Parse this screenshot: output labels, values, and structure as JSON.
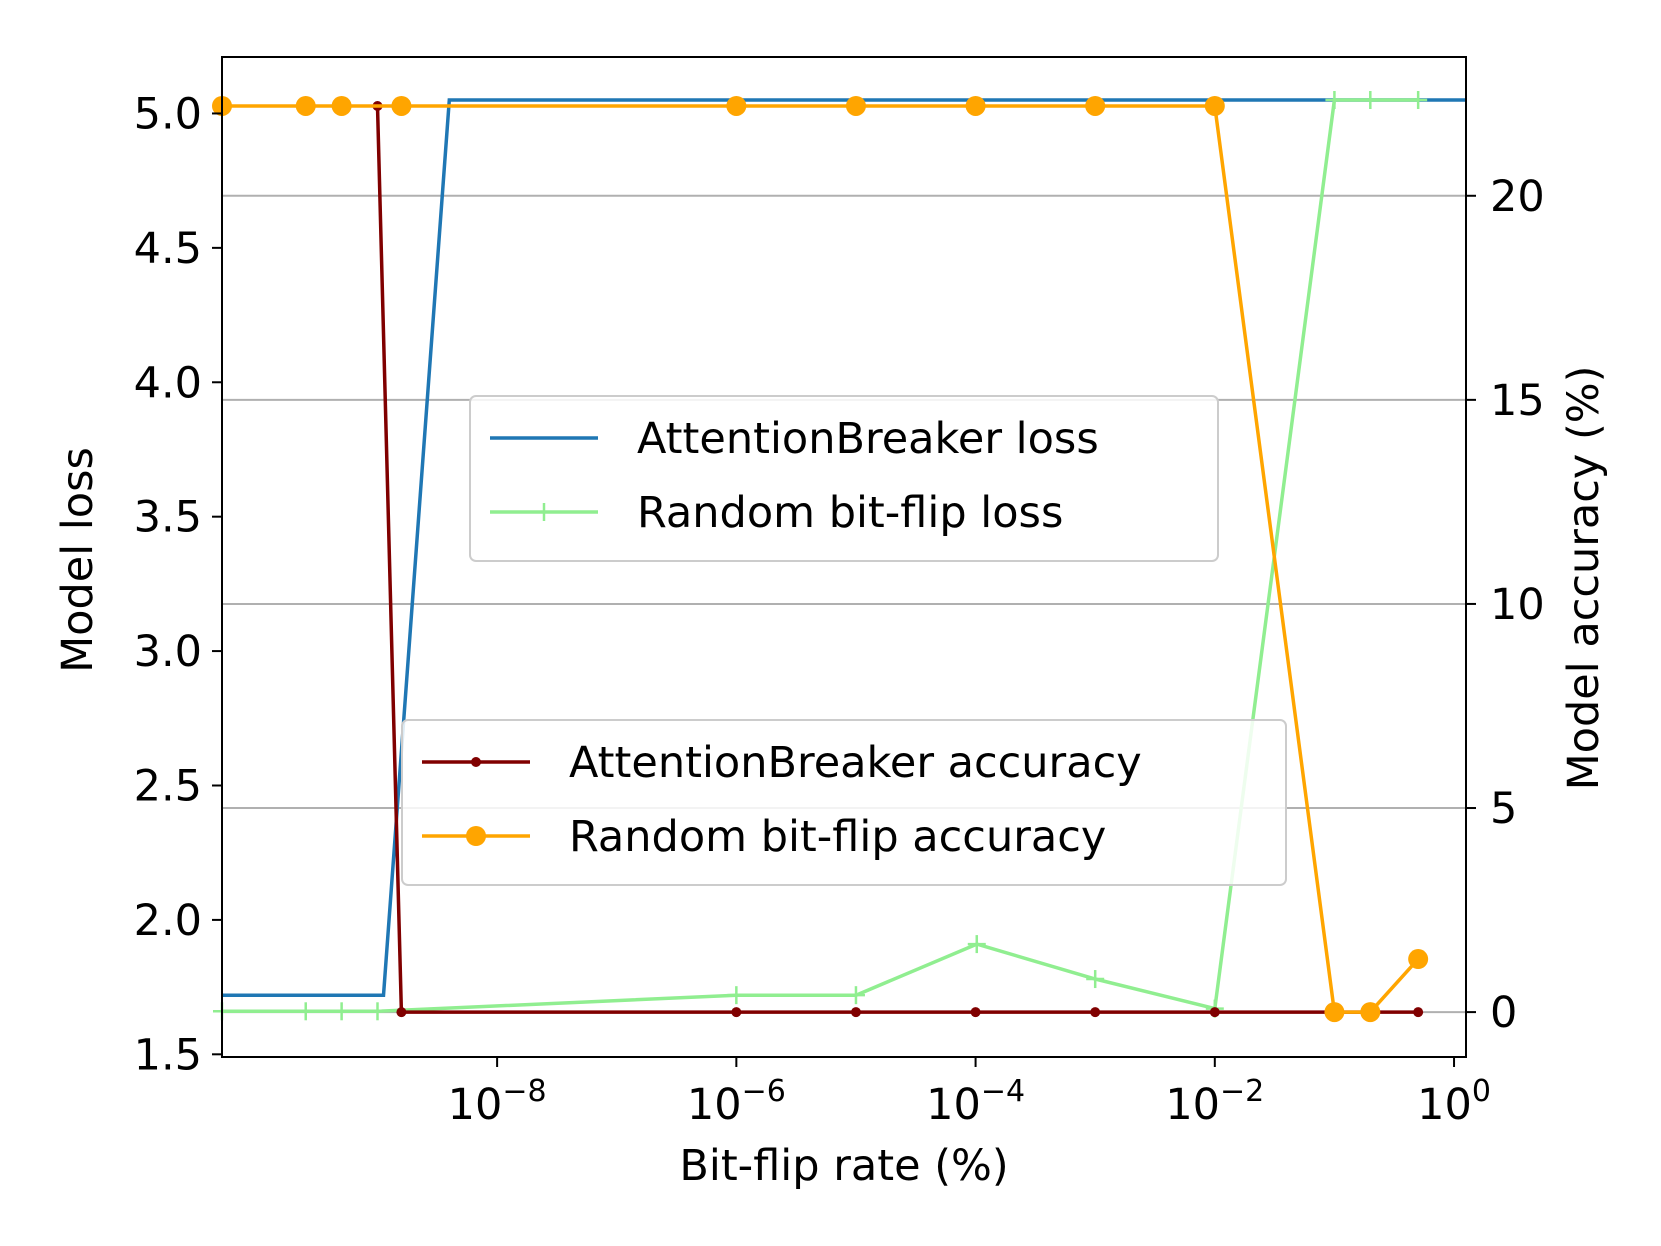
{
  "chart_data": {
    "type": "line",
    "title": "",
    "xlabel": "Bit-flip rate (%)",
    "ylabel_left": "Model loss",
    "ylabel_right": "Model accuracy (%)",
    "x_scale": "log",
    "x_exponent_range": [
      -10.3,
      0.1
    ],
    "xticks": [
      {
        "base": "10",
        "exp": "−8",
        "value": -8
      },
      {
        "base": "10",
        "exp": "−6",
        "value": -6
      },
      {
        "base": "10",
        "exp": "−4",
        "value": -4
      },
      {
        "base": "10",
        "exp": "−2",
        "value": -2
      },
      {
        "base": "10",
        "exp": "0",
        "value": 0
      }
    ],
    "ylim_left": [
      1.49,
      5.21
    ],
    "yticks_left": [
      "1.5",
      "2.0",
      "2.5",
      "3.0",
      "3.5",
      "4.0",
      "4.5",
      "5.0"
    ],
    "ylim_right": [
      -1.1,
      23.4
    ],
    "yticks_right": [
      "0",
      "5",
      "10",
      "15",
      "20"
    ],
    "grid": "horizontal lines at right-axis ticks",
    "series": [
      {
        "name": "AttentionBreaker loss",
        "axis": "left",
        "color": "#1f77b4",
        "marker": "none",
        "points": [
          [
            -10.3,
            1.72
          ],
          [
            -9.0,
            1.72
          ],
          [
            -8.95,
            1.72
          ],
          [
            -8.4,
            5.05
          ],
          [
            0.1,
            5.05
          ]
        ]
      },
      {
        "name": "Random bit-flip loss",
        "axis": "left",
        "color": "#90ee90",
        "marker": "plus",
        "points": [
          [
            -10.3,
            1.66
          ],
          [
            -9.6,
            1.66
          ],
          [
            -9.3,
            1.66
          ],
          [
            -9.0,
            1.66
          ],
          [
            -6.0,
            1.72
          ],
          [
            -5.0,
            1.72
          ],
          [
            -3.99,
            1.91
          ],
          [
            -3.0,
            1.78
          ],
          [
            -2.0,
            1.67
          ],
          [
            -1.0,
            5.05
          ],
          [
            -0.7,
            5.05
          ],
          [
            -0.3,
            5.05
          ]
        ]
      },
      {
        "name": "AttentionBreaker accuracy",
        "axis": "right",
        "color": "#800000",
        "marker": "dot",
        "points": [
          [
            -9.0,
            22.2
          ],
          [
            -8.8,
            0.0
          ],
          [
            -6.0,
            0.0
          ],
          [
            -5.0,
            0.0
          ],
          [
            -4.0,
            0.0
          ],
          [
            -3.0,
            0.0
          ],
          [
            -2.0,
            0.0
          ],
          [
            -0.3,
            0.0
          ]
        ]
      },
      {
        "name": "Random bit-flip accuracy",
        "axis": "right",
        "color": "#ffa500",
        "marker": "circle",
        "points": [
          [
            -10.3,
            22.2
          ],
          [
            -9.6,
            22.2
          ],
          [
            -9.3,
            22.2
          ],
          [
            -8.8,
            22.2
          ],
          [
            -6.0,
            22.2
          ],
          [
            -5.0,
            22.2
          ],
          [
            -4.0,
            22.2
          ],
          [
            -3.0,
            22.2
          ],
          [
            -2.0,
            22.2
          ],
          [
            -1.0,
            0.0
          ],
          [
            -0.7,
            0.0
          ],
          [
            -0.3,
            1.3
          ]
        ]
      }
    ],
    "legends": [
      {
        "placement": "center-upper",
        "entries": [
          "AttentionBreaker loss",
          "Random bit-flip loss"
        ]
      },
      {
        "placement": "center-lower",
        "entries": [
          "AttentionBreaker accuracy",
          "Random bit-flip accuracy"
        ]
      }
    ]
  }
}
